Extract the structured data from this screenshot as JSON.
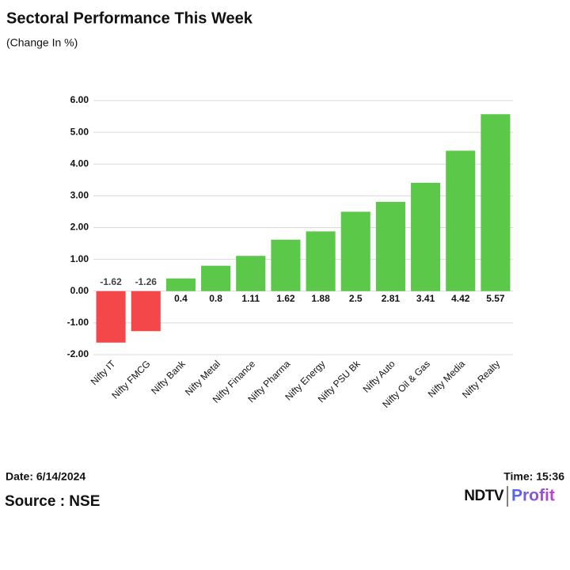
{
  "chart_data": {
    "type": "bar",
    "title": "Sectoral Performance This Week",
    "subtitle": "(Change In %)",
    "categories": [
      "Nifty IT",
      "Nifty FMCG",
      "Nifty Bank",
      "Nifty Metal",
      "Nifty Finance",
      "Nifty Pharma",
      "Nifty Energy",
      "Nifty PSU Bk",
      "Nifty Auto",
      "Nifty Oil & Gas",
      "Nifty Media",
      "Nifty Realty"
    ],
    "values": [
      -1.62,
      -1.26,
      0.4,
      0.8,
      1.11,
      1.62,
      1.88,
      2.5,
      2.81,
      3.41,
      4.42,
      5.57
    ],
    "colors": [
      "#f4474a",
      "#f4474a",
      "#5cc84a",
      "#5cc84a",
      "#5cc84a",
      "#5cc84a",
      "#5cc84a",
      "#5cc84a",
      "#5cc84a",
      "#5cc84a",
      "#5cc84a",
      "#5cc84a"
    ],
    "ylim": [
      -2,
      6
    ],
    "yticks": [
      {
        "value": -2,
        "label": "-2.00"
      },
      {
        "value": -1,
        "label": "-1.00"
      },
      {
        "value": 0,
        "label": "0.00"
      },
      {
        "value": 1,
        "label": "1.00"
      },
      {
        "value": 2,
        "label": "2.00"
      },
      {
        "value": 3,
        "label": "3.00"
      },
      {
        "value": 4,
        "label": "4.00"
      },
      {
        "value": 5,
        "label": "5.00"
      },
      {
        "value": 6,
        "label": "6.00"
      }
    ],
    "grid": true
  },
  "footer": {
    "date": "Date: 6/14/2024",
    "time": "Time: 15:36",
    "source": "Source : NSE",
    "logo_left": "NDTV",
    "logo_right": "Profit"
  }
}
